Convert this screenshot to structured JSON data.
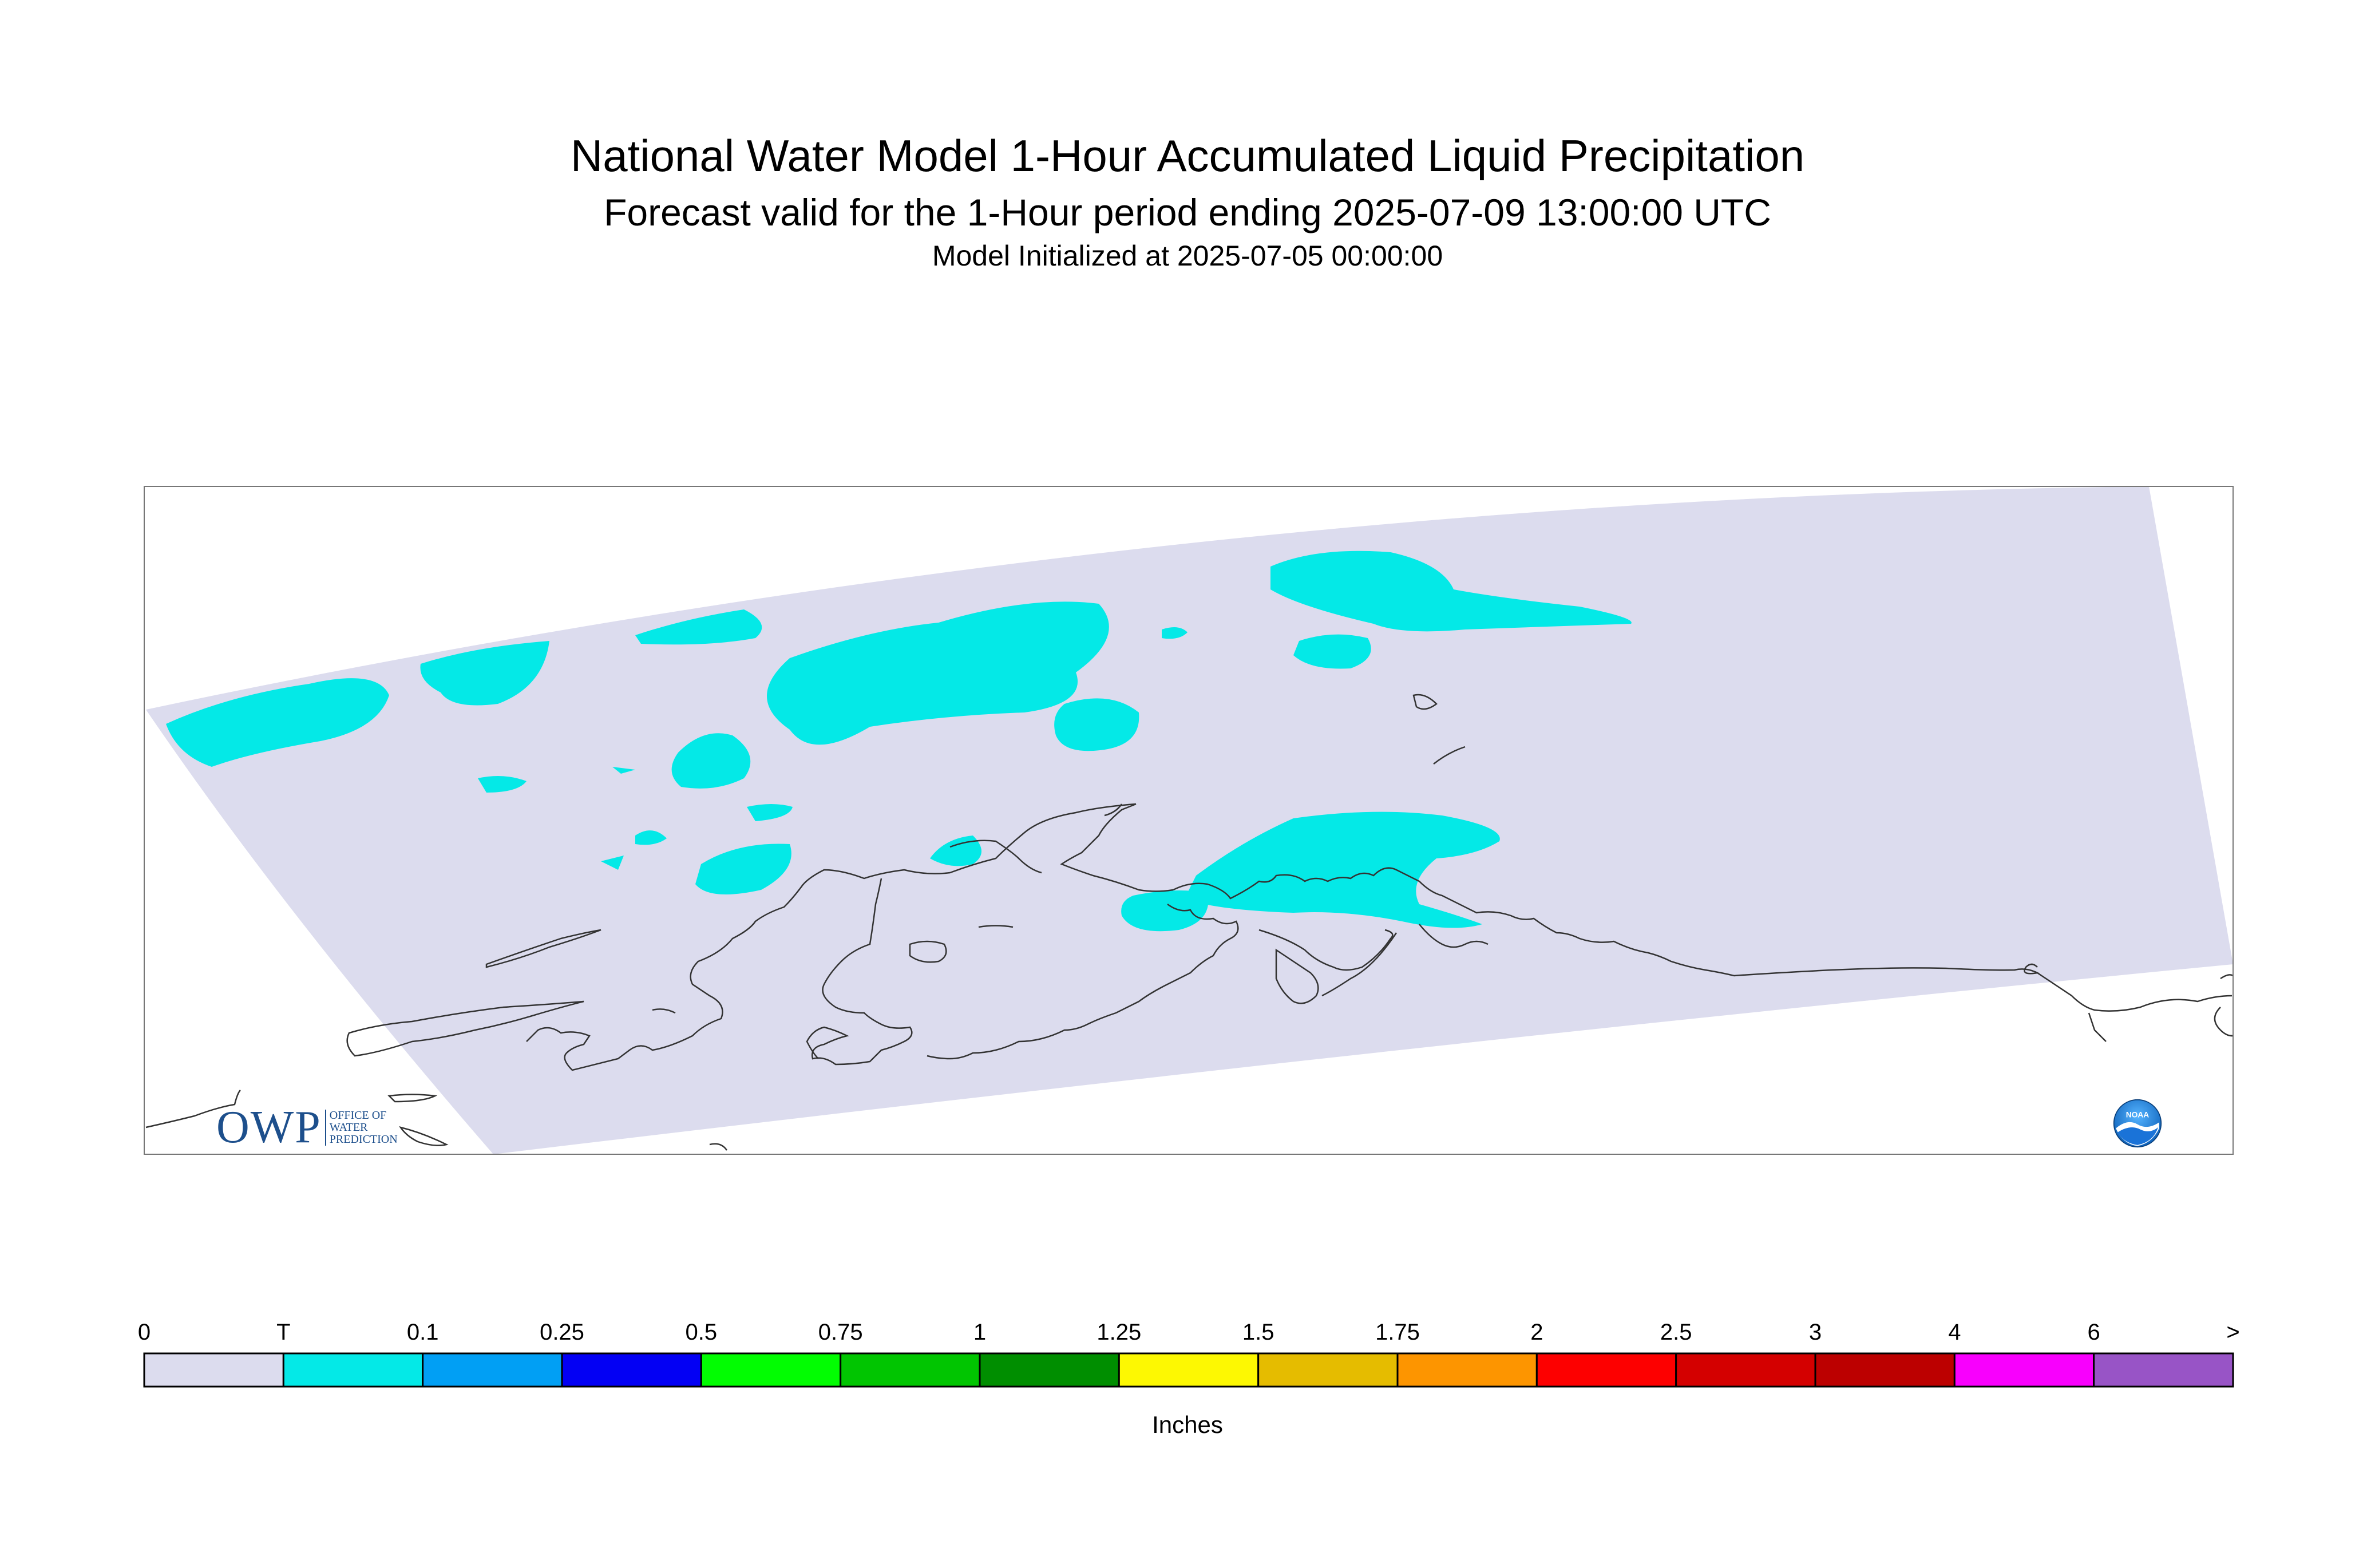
{
  "header": {
    "title": "National Water Model 1-Hour Accumulated Liquid Precipitation",
    "subtitle": "Forecast valid for the 1-Hour period ending 2025-07-09 13:00:00 UTC",
    "init": "Model Initialized at 2025-07-05 00:00:00"
  },
  "map": {
    "domain_fill": "#dcdcee",
    "precip_fill": "#04e9e7",
    "coast_color": "#333333"
  },
  "legend": {
    "labels": [
      "0",
      "T",
      "0.1",
      "0.25",
      "0.5",
      "0.75",
      "1",
      "1.25",
      "1.5",
      "1.75",
      "2",
      "2.5",
      "3",
      "4",
      "6",
      ">"
    ],
    "colors": [
      "#dcdcee",
      "#04e9e7",
      "#019ff4",
      "#0300f4",
      "#02fd02",
      "#01c501",
      "#008e00",
      "#fdf802",
      "#e5bc00",
      "#fd9500",
      "#fd0000",
      "#d40000",
      "#bc0000",
      "#f800fd",
      "#9854c6"
    ],
    "units": "Inches"
  },
  "logos": {
    "owp_mark": "OWP",
    "owp_text": [
      "OFFICE OF",
      "WATER",
      "PREDICTION"
    ],
    "noaa": "NOAA"
  }
}
